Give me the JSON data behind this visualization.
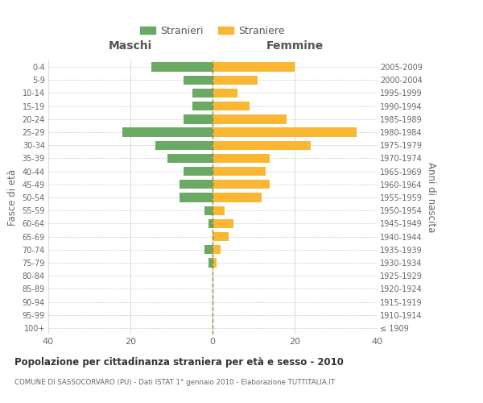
{
  "age_groups": [
    "100+",
    "95-99",
    "90-94",
    "85-89",
    "80-84",
    "75-79",
    "70-74",
    "65-69",
    "60-64",
    "55-59",
    "50-54",
    "45-49",
    "40-44",
    "35-39",
    "30-34",
    "25-29",
    "20-24",
    "15-19",
    "10-14",
    "5-9",
    "0-4"
  ],
  "birth_years": [
    "≤ 1909",
    "1910-1914",
    "1915-1919",
    "1920-1924",
    "1925-1929",
    "1930-1934",
    "1935-1939",
    "1940-1944",
    "1945-1949",
    "1950-1954",
    "1955-1959",
    "1960-1964",
    "1965-1969",
    "1970-1974",
    "1975-1979",
    "1980-1984",
    "1985-1989",
    "1990-1994",
    "1995-1999",
    "2000-2004",
    "2005-2009"
  ],
  "males": [
    0,
    0,
    0,
    0,
    0,
    1,
    2,
    0,
    1,
    2,
    8,
    8,
    7,
    11,
    14,
    22,
    7,
    5,
    5,
    7,
    15
  ],
  "females": [
    0,
    0,
    0,
    0,
    0,
    1,
    2,
    4,
    5,
    3,
    12,
    14,
    13,
    14,
    24,
    35,
    18,
    9,
    6,
    11,
    20
  ],
  "male_color": "#6aaa64",
  "female_color": "#f9b733",
  "title": "Popolazione per cittadinanza straniera per età e sesso - 2010",
  "subtitle": "COMUNE DI SASSOCORVARO (PU) - Dati ISTAT 1° gennaio 2010 - Elaborazione TUTTITALIA.IT",
  "left_label": "Maschi",
  "right_label": "Femmine",
  "y_left_label": "Fasce di età",
  "y_right_label": "Anni di nascita",
  "legend_male": "Stranieri",
  "legend_female": "Straniere",
  "xlim": 40,
  "background_color": "#ffffff",
  "grid_color": "#cccccc",
  "dashed_line_color": "#888844"
}
